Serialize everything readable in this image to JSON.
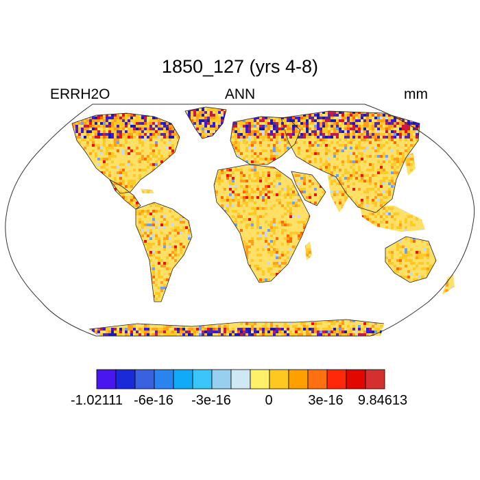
{
  "header": {
    "title": "1850_127 (yrs 4-8)",
    "left_label": "ERRH2O",
    "center_label": "ANN",
    "right_label": "mm"
  },
  "map": {
    "projection": "robinson",
    "background": "#ffffff",
    "land_field_colors": [
      "#ffe066",
      "#ffc928",
      "#ff9f1a",
      "#ff6a00",
      "#ee1000",
      "#c8d8f0",
      "#6f9ff0",
      "#2a28d8",
      "#b0163a"
    ],
    "high_latitude_colors": [
      "#3a18e0",
      "#1a1ab0",
      "#5a2a9a",
      "#c81a4a",
      "#ff9f1a",
      "#ffe066"
    ]
  },
  "colorbar": {
    "colors": [
      "#4a16f0",
      "#1a2ad8",
      "#3a62e0",
      "#2a84f0",
      "#10aaf8",
      "#3ac6f8",
      "#98cff0",
      "#cfe8f6",
      "#fff06a",
      "#ffc820",
      "#ffa000",
      "#ff7010",
      "#ff2808",
      "#e00800",
      "#d43030"
    ],
    "ticks": [
      "-1.02111",
      "-6e-16",
      "-3e-16",
      "0",
      "3e-16",
      "9.84613"
    ]
  }
}
